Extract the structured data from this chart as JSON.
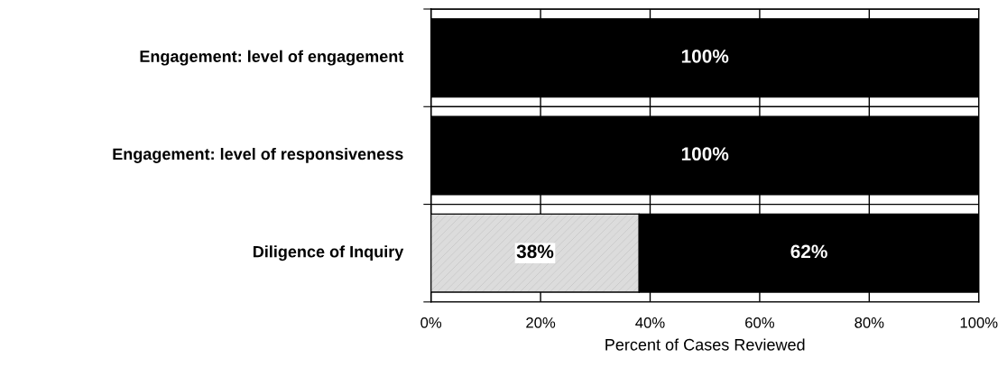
{
  "chart_data": {
    "type": "bar",
    "orientation": "horizontal",
    "stacked": true,
    "categories": [
      "Engagement: level of engagement",
      "Engagement: level of responsiveness",
      "Diligence of Inquiry"
    ],
    "series": [
      {
        "color": "#dcdcdc",
        "values": [
          0,
          0,
          38
        ],
        "value_labels": [
          null,
          null,
          "38%"
        ]
      },
      {
        "color": "#000000",
        "values": [
          100,
          100,
          62
        ],
        "value_labels": [
          "100%",
          "100%",
          "62%"
        ]
      }
    ],
    "xlabel": "Percent of Cases Reviewed",
    "xlim": [
      0,
      100
    ],
    "xticks": [
      {
        "value": 0,
        "label": "0%"
      },
      {
        "value": 20,
        "label": "20%"
      },
      {
        "value": 40,
        "label": "40%"
      },
      {
        "value": 60,
        "label": "60%"
      },
      {
        "value": 80,
        "label": "80%"
      },
      {
        "value": 100,
        "label": "100%"
      }
    ],
    "grid": true
  }
}
